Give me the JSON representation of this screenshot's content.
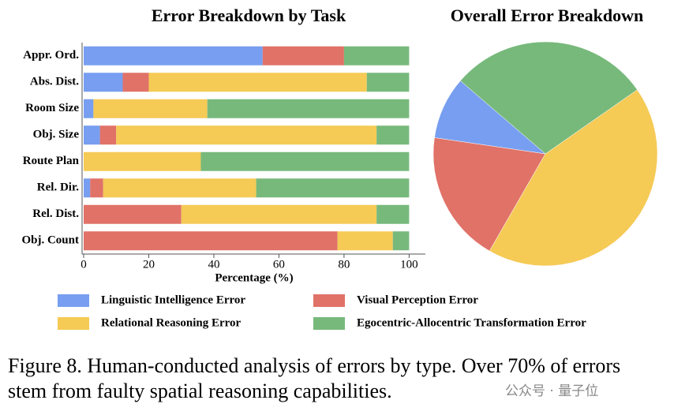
{
  "chart_data": [
    {
      "type": "hbar-stacked",
      "title": "Error Breakdown by Task",
      "xlabel": "Percentage (%)",
      "categories": [
        "Appr. Ord.",
        "Abs. Dist.",
        "Room Size",
        "Obj. Size",
        "Route Plan",
        "Rel. Dir.",
        "Rel. Dist.",
        "Obj. Count"
      ],
      "series": [
        {
          "name": "Linguistic Intelligence Error",
          "color": "#779ef0",
          "values": [
            55,
            12,
            3,
            5,
            0,
            2,
            0,
            0
          ]
        },
        {
          "name": "Visual Perception Error",
          "color": "#e07268",
          "values": [
            25,
            8,
            0,
            5,
            0,
            4,
            30,
            78
          ]
        },
        {
          "name": "Relational Reasoning Error",
          "color": "#f5ca55",
          "values": [
            0,
            67,
            35,
            80,
            36,
            47,
            60,
            17
          ]
        },
        {
          "name": "Egocentric-Allocentric Transformation Error",
          "color": "#77b97b",
          "values": [
            20,
            13,
            62,
            10,
            64,
            47,
            10,
            5
          ]
        }
      ],
      "xlim": [
        0,
        105
      ],
      "xticks": [
        0,
        20,
        40,
        60,
        80,
        100
      ]
    },
    {
      "type": "pie",
      "title": "Overall Error Breakdown",
      "values": [
        9,
        19,
        43,
        29
      ],
      "colors": [
        "#779ef0",
        "#e07268",
        "#f5ca55",
        "#77b97b"
      ]
    }
  ],
  "caption": "Figure 8. Human-conducted analysis of errors by type. Over 70% of errors stem from faulty spatial reasoning capabilities.",
  "watermark": "公众号 · 量子位"
}
